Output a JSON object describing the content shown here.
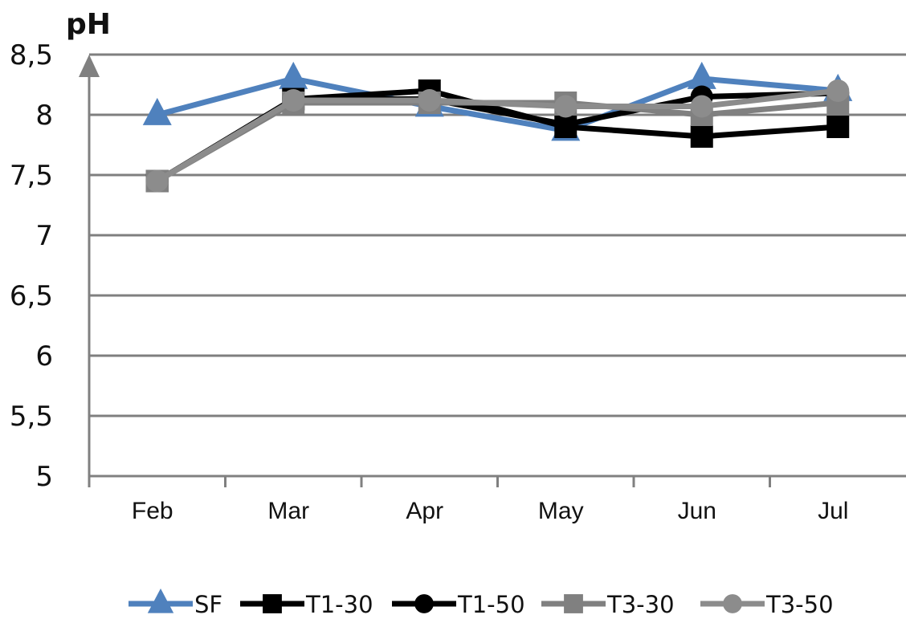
{
  "chart_data": {
    "type": "line",
    "title": "",
    "xlabel": "",
    "ylabel": "pH",
    "categories": [
      "Feb",
      "Mar",
      "Apr",
      "May",
      "Jun",
      "Jul"
    ],
    "ylim": [
      5,
      8.5
    ],
    "yticks": [
      "5",
      "5,5",
      "6",
      "6,5",
      "7",
      "7,5",
      "8",
      "8,5"
    ],
    "ytick_values": [
      5,
      5.5,
      6,
      6.5,
      7,
      7.5,
      8,
      8.5
    ],
    "grid": true,
    "legend": "bottom",
    "series": [
      {
        "name": "SF",
        "color": "#4F81BD",
        "marker": "triangle",
        "values": [
          8.0,
          8.3,
          8.07,
          7.87,
          8.3,
          8.2
        ]
      },
      {
        "name": "T1-30",
        "color": "#000000",
        "marker": "square",
        "values": [
          7.45,
          8.13,
          8.2,
          7.9,
          7.82,
          7.9
        ]
      },
      {
        "name": "T1-50",
        "color": "#000000",
        "marker": "circle",
        "values": [
          7.45,
          8.13,
          8.13,
          7.92,
          8.15,
          8.18
        ]
      },
      {
        "name": "T3-30",
        "color": "#808080",
        "marker": "square",
        "values": [
          7.45,
          8.1,
          8.1,
          8.1,
          8.0,
          8.1
        ]
      },
      {
        "name": "T3-50",
        "color": "#8C8C8C",
        "marker": "circle",
        "values": [
          7.45,
          8.12,
          8.12,
          8.07,
          8.07,
          8.2
        ]
      }
    ]
  }
}
